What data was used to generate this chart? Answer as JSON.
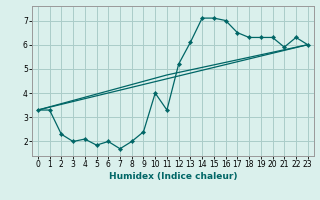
{
  "xlabel": "Humidex (Indice chaleur)",
  "bg_color": "#daf0ec",
  "grid_color": "#aaccc8",
  "line_color": "#006666",
  "xlim": [
    -0.5,
    23.5
  ],
  "ylim": [
    1.4,
    7.6
  ],
  "xticks": [
    0,
    1,
    2,
    3,
    4,
    5,
    6,
    7,
    8,
    9,
    10,
    11,
    12,
    13,
    14,
    15,
    16,
    17,
    18,
    19,
    20,
    21,
    22,
    23
  ],
  "yticks": [
    2,
    3,
    4,
    5,
    6,
    7
  ],
  "series1_x": [
    0,
    1,
    2,
    3,
    4,
    5,
    6,
    7,
    8,
    9,
    10,
    11,
    12,
    13,
    14,
    15,
    16,
    17,
    18,
    19,
    20,
    21,
    22,
    23
  ],
  "series1_y": [
    3.3,
    3.3,
    2.3,
    2.0,
    2.1,
    1.85,
    2.0,
    1.7,
    2.0,
    2.4,
    4.0,
    3.3,
    5.2,
    6.1,
    7.1,
    7.1,
    7.0,
    6.5,
    6.3,
    6.3,
    6.3,
    5.9,
    6.3,
    6.0
  ],
  "series2_x": [
    0,
    23
  ],
  "series2_y": [
    3.3,
    6.0
  ],
  "series3_x": [
    0,
    11,
    23
  ],
  "series3_y": [
    3.3,
    4.75,
    6.0
  ],
  "tick_fontsize": 5.5,
  "xlabel_fontsize": 6.5
}
